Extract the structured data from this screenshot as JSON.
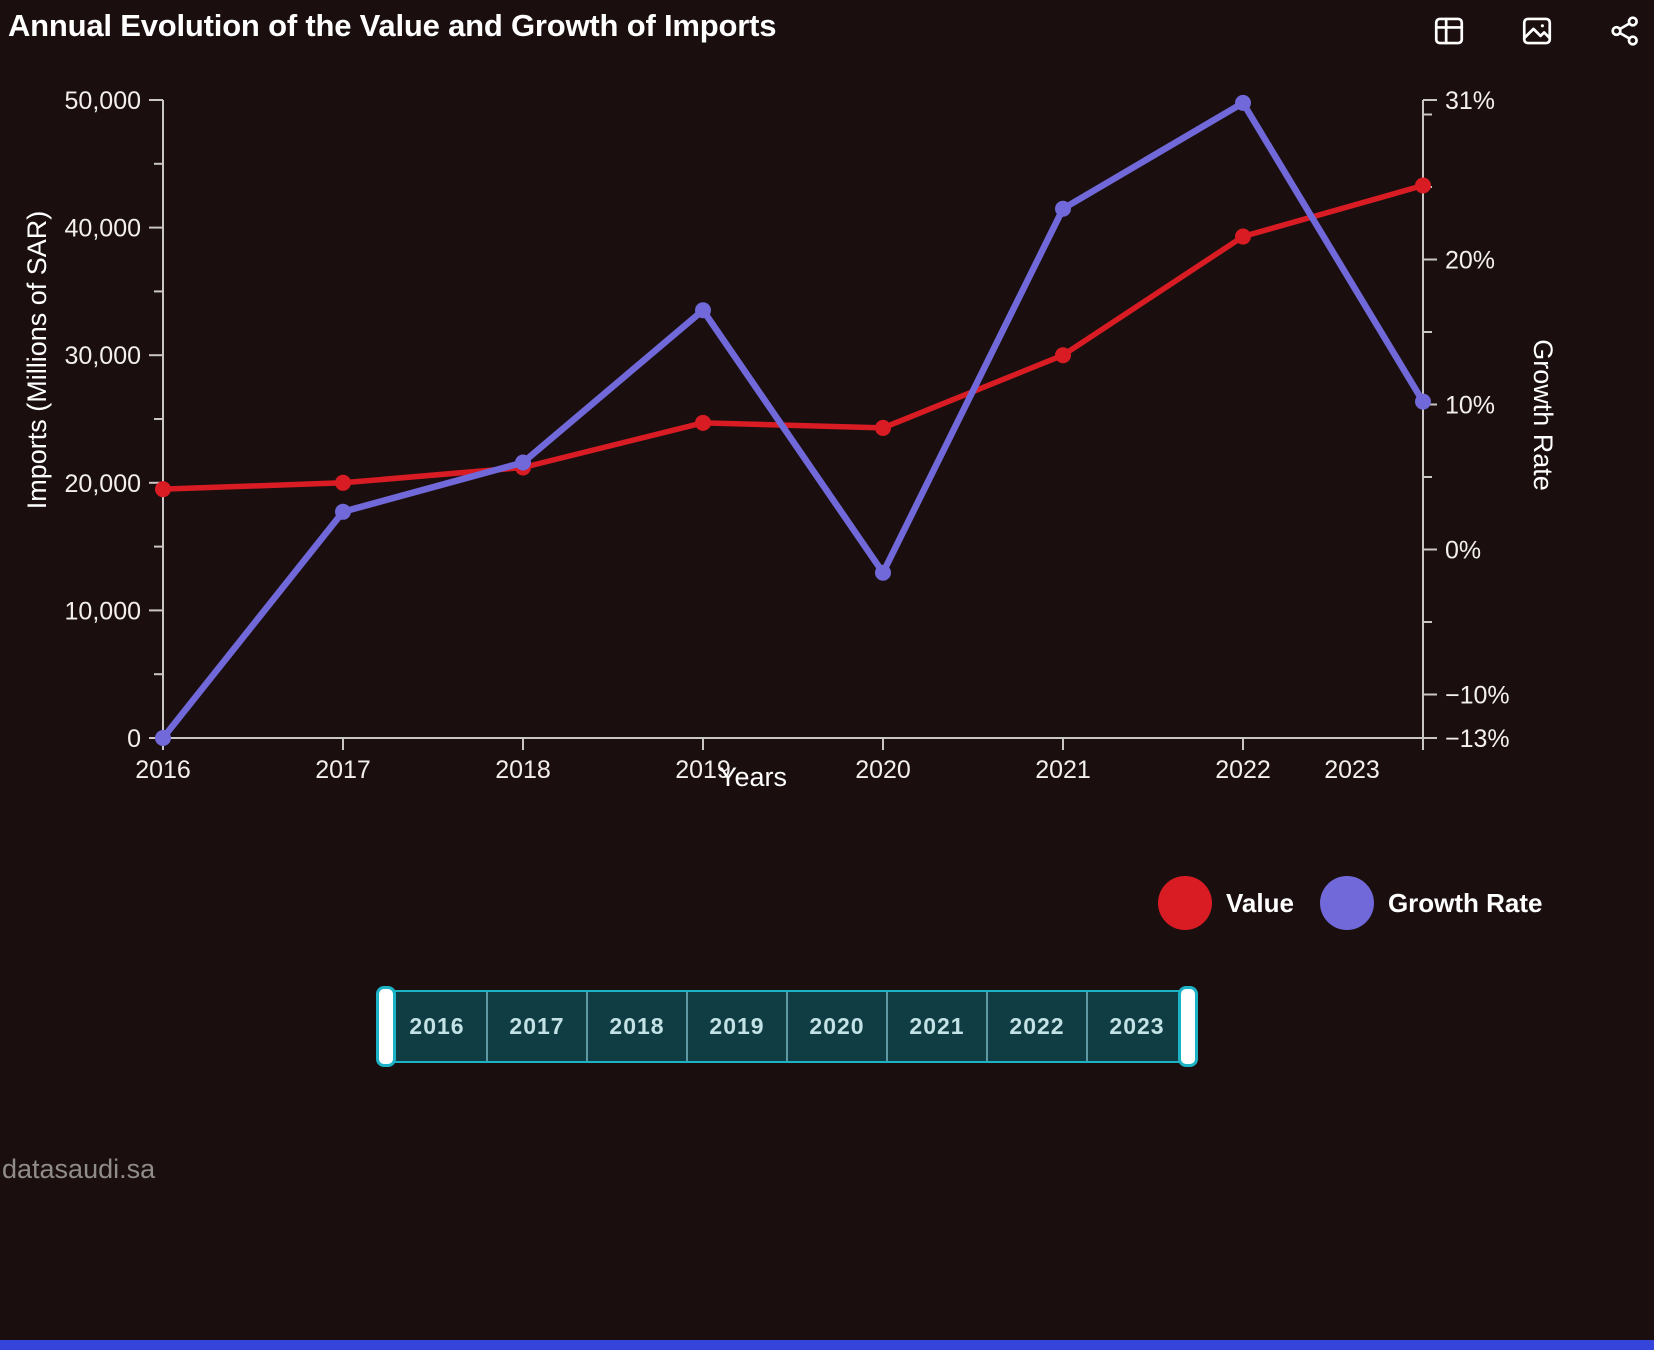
{
  "title": "Annual Evolution of the Value and Growth of Imports",
  "toolbar": {
    "icons": [
      {
        "name": "table-view-icon"
      },
      {
        "name": "download-image-icon"
      },
      {
        "name": "share-icon"
      }
    ]
  },
  "chart_data": {
    "type": "line",
    "title": "Annual Evolution of the Value and Growth of Imports",
    "x": [
      "2016",
      "2017",
      "2018",
      "2019",
      "2020",
      "2021",
      "2022",
      "2023"
    ],
    "xlabel": "Years",
    "series": [
      {
        "name": "Value",
        "axis": "left",
        "color": "#d91c24",
        "values": [
          19500,
          20000,
          21200,
          24700,
          24300,
          30000,
          39300,
          43300
        ]
      },
      {
        "name": "Growth Rate",
        "axis": "right",
        "color": "#7168d9",
        "values": [
          -13,
          2.6,
          6.0,
          16.5,
          -1.6,
          23.5,
          30.8,
          10.2
        ]
      }
    ],
    "left_axis": {
      "label": "Imports (Millions of SAR)",
      "min": 0,
      "max": 50000,
      "major_step": 10000,
      "minor_step": 5000,
      "tick_labels": [
        "0",
        "10,000",
        "20,000",
        "30,000",
        "40,000",
        "50,000"
      ]
    },
    "right_axis": {
      "label": "Growth Rate",
      "min": -13,
      "max": 31,
      "major_ticks": [
        {
          "v": 31,
          "t": "31%"
        },
        {
          "v": 20,
          "t": "20%"
        },
        {
          "v": 10,
          "t": "10%"
        },
        {
          "v": 0,
          "t": "0%"
        },
        {
          "v": -10,
          "t": "−10%"
        },
        {
          "v": -13,
          "t": "−13%"
        }
      ],
      "minor_ticks": [
        30,
        25,
        15,
        5,
        -5
      ]
    },
    "legend": [
      {
        "label": "Value",
        "color": "#d91c24"
      },
      {
        "label": "Growth Rate",
        "color": "#7168d9"
      }
    ],
    "legend_position": "bottom-right",
    "grid": false
  },
  "timeline": {
    "years": [
      "2016",
      "2017",
      "2018",
      "2019",
      "2020",
      "2021",
      "2022",
      "2023"
    ],
    "selected_range": [
      "2016",
      "2023"
    ]
  },
  "footer": {
    "source": "datasaudi.sa"
  },
  "colors": {
    "background": "#1a0f0e",
    "value_red": "#d91c24",
    "growth_purple": "#7168d9",
    "axis_gray": "#c9c6c5",
    "timeline_fill": "#103d43",
    "timeline_border": "#1cb3c7",
    "bottom_bar": "#3544d9"
  }
}
